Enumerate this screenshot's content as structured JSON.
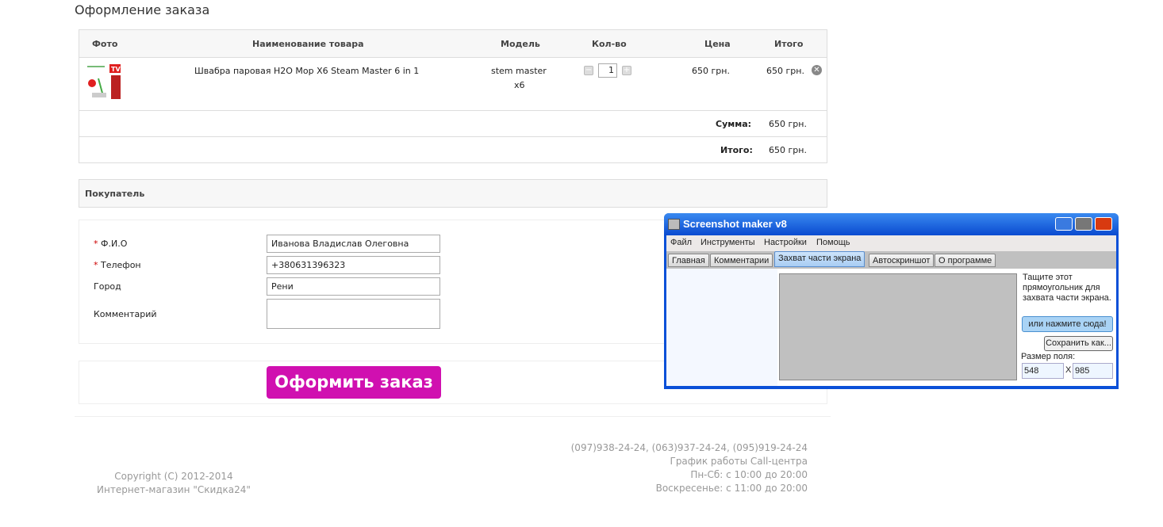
{
  "page_title": "Оформление заказа",
  "cart": {
    "headers": {
      "photo": "Фото",
      "name": "Наименование товара",
      "model": "Модель",
      "qty": "Кол-во",
      "price": "Цена",
      "total": "Итого"
    },
    "item": {
      "name": "Швабра паровая H2O Mop X6 Steam Master 6 in 1",
      "model_line1": "stem master",
      "model_line2": "x6",
      "qty": "1",
      "price": "650 грн.",
      "total": "650 грн."
    },
    "sum_label": "Сумма:",
    "sum_value": "650 грн.",
    "total_label": "Итого:",
    "total_value": "650 грн."
  },
  "buyer": {
    "title": "Покупатель",
    "required_mark": "*",
    "fio_label": "Ф.И.О",
    "fio_value": "Иванова Владислав Олеговна",
    "phone_label": "Телефон",
    "phone_value": "+380631396323",
    "city_label": "Город",
    "city_value": "Рени",
    "comment_label": "Комментарий",
    "comment_value": ""
  },
  "order_button": "Оформить заказ",
  "footer": {
    "copyright": "Copyright (C) 2012-2014",
    "shop": "Интернет-магазин \"Скидка24\"",
    "phones": "(097)938-24-24, (063)937-24-24, (095)919-24-24",
    "schedule_title": "График работы Call-центра",
    "weekdays": "Пн-Сб: с 10:00 до 20:00",
    "sunday": "Воскресенье: с 11:00 до 20:00"
  },
  "app": {
    "title": "Screenshot maker v8",
    "menu": [
      "Файл",
      "Инструменты",
      "Настройки",
      "Помощь"
    ],
    "tabs": [
      "Главная",
      "Комментарии",
      "Захват части экрана",
      "Автоскриншот",
      "О программе"
    ],
    "hint": "Тащите этот прямоугольник для захвата части экрана.",
    "capture_button": "или нажмите сюда!",
    "save_button": "Сохранить как...",
    "size_label": "Размер поля:",
    "width": "548",
    "times": "X",
    "height": "985"
  },
  "colors": {
    "order_button": "#d010b0",
    "required": "#cc0000"
  }
}
